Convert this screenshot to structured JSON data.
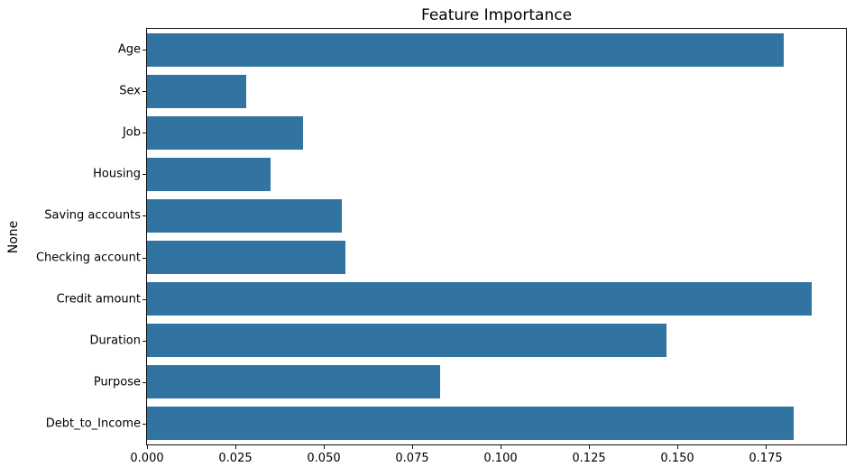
{
  "figure": {
    "background_color": "#ffffff",
    "spine_color": "#0f0f0f",
    "text_color": "#000000"
  },
  "chart_data": {
    "type": "bar",
    "orientation": "horizontal",
    "title": "Feature Importance",
    "xlabel": "",
    "ylabel": "None",
    "categories": [
      "Age",
      "Sex",
      "Job",
      "Housing",
      "Saving accounts",
      "Checking account",
      "Credit amount",
      "Duration",
      "Purpose",
      "Debt_to_Income"
    ],
    "values": [
      0.18,
      0.028,
      0.044,
      0.035,
      0.055,
      0.056,
      0.188,
      0.147,
      0.083,
      0.183
    ],
    "x_tick_labels": [
      "0.000",
      "0.025",
      "0.050",
      "0.075",
      "0.100",
      "0.125",
      "0.150",
      "0.175"
    ],
    "x_tick_values": [
      0.0,
      0.025,
      0.05,
      0.075,
      0.1,
      0.125,
      0.15,
      0.175
    ],
    "xlim": [
      0,
      0.1977
    ],
    "bar_color": "#3274a1",
    "grid": false,
    "legend": null
  }
}
